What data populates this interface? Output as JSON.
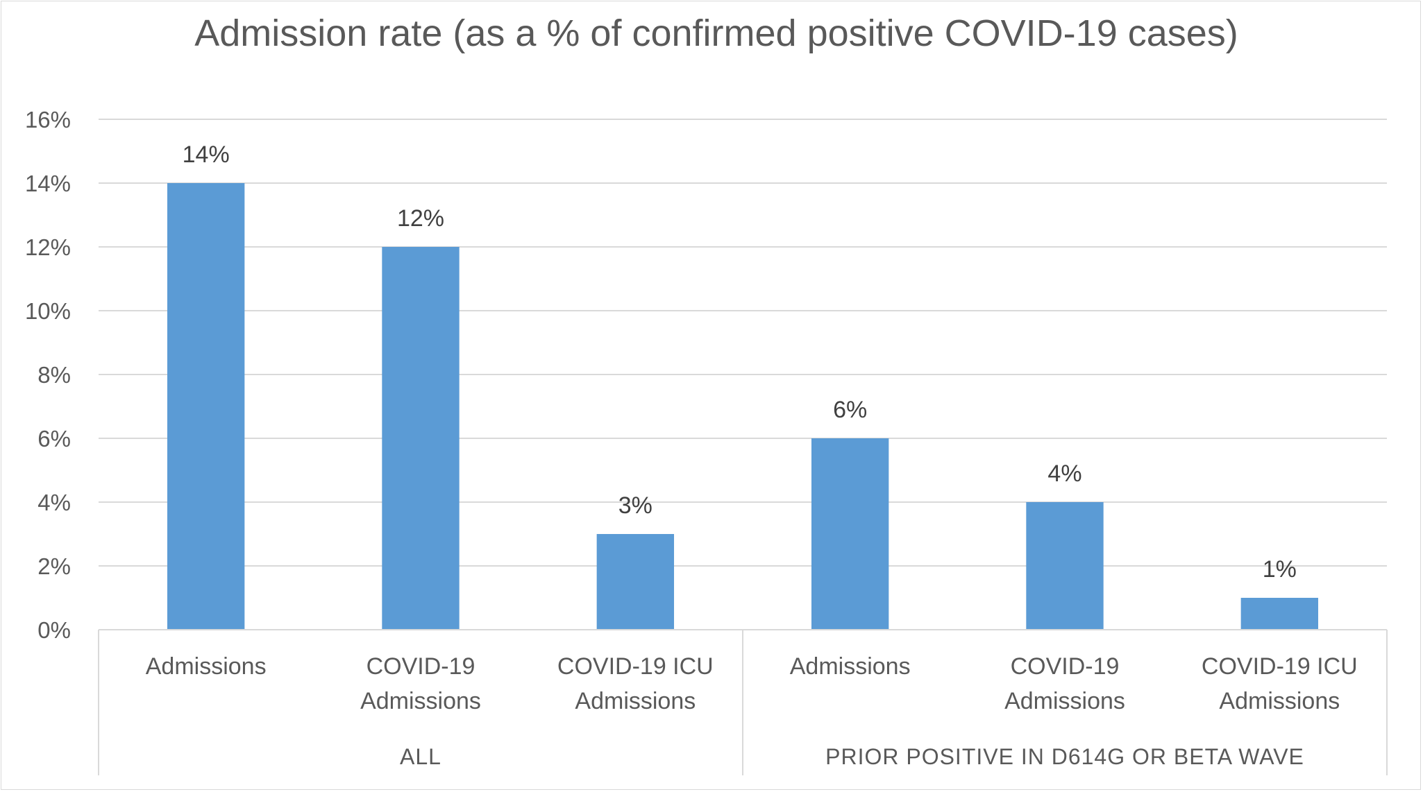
{
  "chart_data": {
    "type": "bar",
    "title": "Admission rate (as a % of confirmed positive COVID-19 cases)",
    "ylim": [
      0,
      16
    ],
    "yticks": [
      0,
      2,
      4,
      6,
      8,
      10,
      12,
      14,
      16
    ],
    "ytick_labels": [
      "0%",
      "2%",
      "4%",
      "6%",
      "8%",
      "10%",
      "12%",
      "14%",
      "16%"
    ],
    "grid": true,
    "legend": "none",
    "bar_color": "#5B9BD5",
    "groups": [
      {
        "label": "ALL",
        "categories": [
          [
            "Admissions"
          ],
          [
            "COVID-19",
            "Admissions"
          ],
          [
            "COVID-19 ICU",
            "Admissions"
          ]
        ],
        "values": [
          14,
          12,
          3
        ],
        "data_labels": [
          "14%",
          "12%",
          "3%"
        ]
      },
      {
        "label": "PRIOR POSITIVE IN D614G OR BETA WAVE",
        "categories": [
          [
            "Admissions"
          ],
          [
            "COVID-19",
            "Admissions"
          ],
          [
            "COVID-19 ICU",
            "Admissions"
          ]
        ],
        "values": [
          6,
          4,
          1
        ],
        "data_labels": [
          "6%",
          "4%",
          "1%"
        ]
      }
    ]
  }
}
